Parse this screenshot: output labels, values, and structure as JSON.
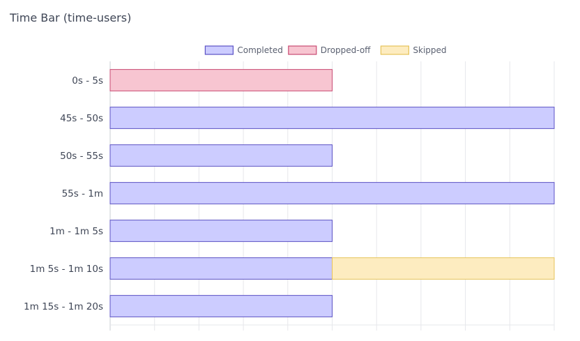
{
  "chart_title": "Time Bar (time-users)",
  "chart_data": {
    "type": "bar",
    "orientation": "horizontal",
    "stacked": true,
    "categories": [
      "0s - 5s",
      "45s - 50s",
      "50s - 55s",
      "55s - 1m",
      "1m - 1m 5s",
      "1m 5s - 1m 10s",
      "1m 15s - 1m 20s"
    ],
    "series": [
      {
        "name": "Completed",
        "values": [
          0,
          2,
          1,
          2,
          1,
          1,
          1
        ],
        "fill": "#ccccff",
        "stroke": "#5b52c4"
      },
      {
        "name": "Dropped-off",
        "values": [
          1,
          0,
          0,
          0,
          0,
          0,
          0
        ],
        "fill": "#f7c5d1",
        "stroke": "#c94b73"
      },
      {
        "name": "Skipped",
        "values": [
          0,
          0,
          0,
          0,
          0,
          1,
          0
        ],
        "fill": "#fdecc0",
        "stroke": "#e6c35a"
      }
    ],
    "xlim": [
      0,
      2
    ],
    "grid": true,
    "legend_position": "top-center",
    "xlabel": "",
    "ylabel": ""
  }
}
